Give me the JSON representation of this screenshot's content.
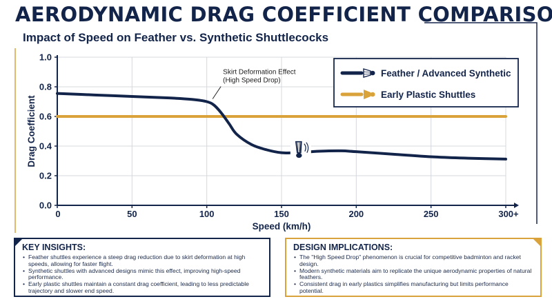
{
  "header": {
    "title": "AERODYNAMIC DRAG COEFFICIENT COMPARISON",
    "subtitle": "Impact of Speed on Feather vs. Synthetic Shuttlecocks"
  },
  "colors": {
    "navy": "#13244a",
    "gold": "#d9a23a",
    "grid": "#d5d8de"
  },
  "chart_data": {
    "type": "line",
    "xlabel": "Speed (km/h)",
    "ylabel": "Drag Coefficient",
    "xlim": [
      0,
      300
    ],
    "ylim": [
      0,
      1.0
    ],
    "x_ticks": [
      0,
      50,
      100,
      150,
      200,
      250,
      300
    ],
    "x_tick_labels": [
      "0",
      "50",
      "100",
      "150",
      "200",
      "250",
      "300+"
    ],
    "y_ticks": [
      0,
      0.2,
      0.4,
      0.6,
      0.8,
      1.0
    ],
    "y_tick_labels": [
      "0.0",
      "0.2",
      "0.4",
      "0.6",
      "0.8",
      "1.0"
    ],
    "grid": true,
    "legend_position": "top-right",
    "series": [
      {
        "name": "Feather / Advanced Synthetic",
        "color": "#13244a",
        "icon": "feather-shuttlecock-icon",
        "x": [
          0,
          25,
          50,
          75,
          90,
          100,
          105,
          110,
          115,
          120,
          130,
          140,
          150,
          160,
          175,
          190,
          200,
          225,
          250,
          275,
          300
        ],
        "y": [
          0.755,
          0.745,
          0.735,
          0.725,
          0.715,
          0.7,
          0.675,
          0.62,
          0.55,
          0.48,
          0.41,
          0.375,
          0.355,
          0.355,
          0.365,
          0.368,
          0.362,
          0.345,
          0.328,
          0.318,
          0.312
        ]
      },
      {
        "name": "Early Plastic Shuttles",
        "color": "#d9a23a",
        "icon": "plastic-shuttlecock-icon",
        "x": [
          0,
          300
        ],
        "y": [
          0.6,
          0.6
        ]
      }
    ],
    "annotations": [
      {
        "text_lines": [
          "Skirt Deformation Effect",
          "(High Speed Drop)"
        ],
        "x": 103,
        "y": 0.7
      }
    ]
  },
  "key_insights": {
    "heading": "KEY INSIGHTS:",
    "items": [
      "Feather shuttles experience a steep drag reduction due to skirt deformation at high speeds, allowing for faster flight.",
      "Synthetic shuttles with advanced designs mimic this effect, improving high-speed performance.",
      "Early plastic shuttles maintain a constant drag coefficient, leading to less predictable trajectory and slower end speed."
    ]
  },
  "design_implications": {
    "heading": "DESIGN IMPLICATIONS:",
    "items": [
      "The \"High Speed Drop\" phenomenon is crucial for competitive badminton and racket design.",
      "Modern synthetic materials aim to replicate the unique aerodynamic properties of natural feathers.",
      "Consistent drag in early plastics simplifies manufacturing but limits performance potential."
    ]
  }
}
